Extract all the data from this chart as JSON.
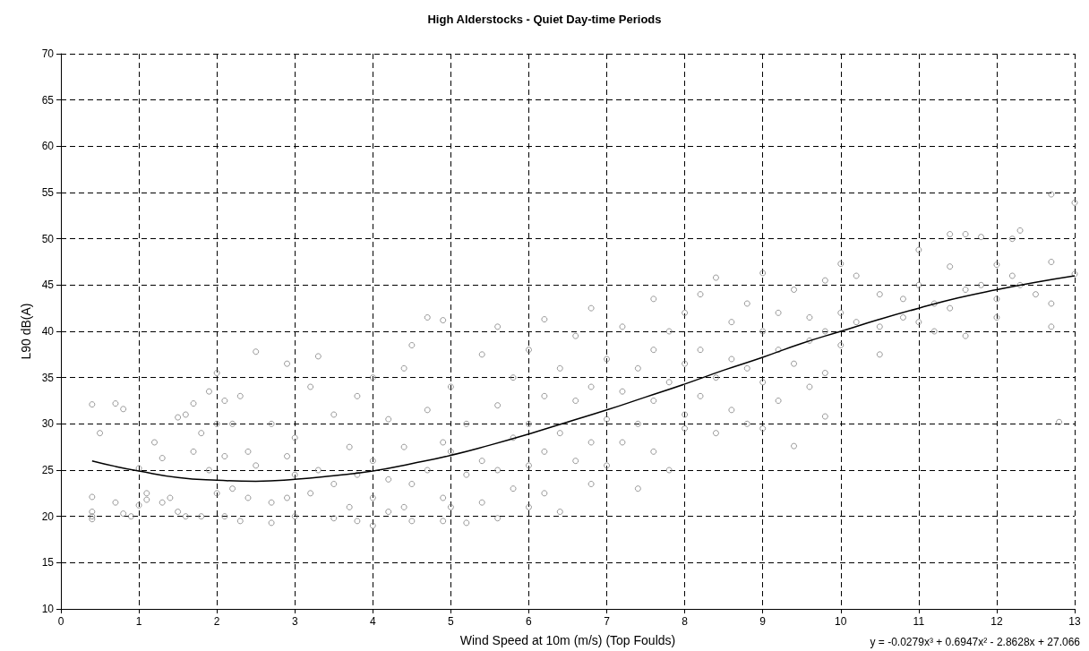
{
  "chart_data": {
    "type": "scatter",
    "title": "High Alderstocks - Quiet Day-time Periods",
    "xlabel": "Wind Speed at 10m (m/s) (Top Foulds)",
    "ylabel": "L90 dB(A)",
    "xlim": [
      0,
      13
    ],
    "xticks": [
      0,
      1,
      2,
      3,
      4,
      5,
      6,
      7,
      8,
      9,
      10,
      11,
      12,
      13
    ],
    "ylim": [
      10,
      70
    ],
    "yticks": [
      10,
      15,
      20,
      25,
      30,
      35,
      40,
      45,
      50,
      55,
      60,
      65,
      70
    ],
    "grid": true,
    "marker": "circle",
    "annotations": [
      "y = -0.0279x³ + 0.6947x² - 2.8628x + 27.066"
    ],
    "series": [
      {
        "color": "#808080",
        "x": [
          0.4,
          0.4,
          0.4,
          0.4,
          0.4,
          0.5,
          0.7,
          0.7,
          0.8,
          0.8,
          0.9,
          1.0,
          1.0,
          1.1,
          1.1,
          1.2,
          1.3,
          1.3,
          1.4,
          1.5,
          1.5,
          1.6,
          1.6,
          1.7,
          1.7,
          1.8,
          1.8,
          1.9,
          1.9,
          2.0,
          2.0,
          2.0,
          2.1,
          2.1,
          2.1,
          2.2,
          2.2,
          2.3,
          2.3,
          2.4,
          2.4,
          2.5,
          2.5,
          2.7,
          2.7,
          2.7,
          2.9,
          2.9,
          2.9,
          3.0,
          3.0,
          3.0,
          3.2,
          3.2,
          3.3,
          3.3,
          3.5,
          3.5,
          3.5,
          3.7,
          3.7,
          3.8,
          3.8,
          3.8,
          4.0,
          4.0,
          4.0,
          4.0,
          4.2,
          4.2,
          4.2,
          4.4,
          4.4,
          4.4,
          4.5,
          4.5,
          4.5,
          4.7,
          4.7,
          4.7,
          4.9,
          4.9,
          4.9,
          4.9,
          5.0,
          5.0,
          5.0,
          5.2,
          5.2,
          5.2,
          5.4,
          5.4,
          5.4,
          5.6,
          5.6,
          5.6,
          5.6,
          5.8,
          5.8,
          5.8,
          6.0,
          6.0,
          6.0,
          6.0,
          6.2,
          6.2,
          6.2,
          6.2,
          6.4,
          6.4,
          6.4,
          6.6,
          6.6,
          6.6,
          6.8,
          6.8,
          6.8,
          6.8,
          7.0,
          7.0,
          7.0,
          7.2,
          7.2,
          7.2,
          7.4,
          7.4,
          7.4,
          7.6,
          7.6,
          7.6,
          7.6,
          7.8,
          7.8,
          7.8,
          8.0,
          8.0,
          8.0,
          8.0,
          8.2,
          8.2,
          8.2,
          8.4,
          8.4,
          8.4,
          8.6,
          8.6,
          8.6,
          8.8,
          8.8,
          8.8,
          9.0,
          9.0,
          9.0,
          9.0,
          9.2,
          9.2,
          9.2,
          9.4,
          9.4,
          9.4,
          9.6,
          9.6,
          9.6,
          9.8,
          9.8,
          9.8,
          9.8,
          10.0,
          10.0,
          10.0,
          10.2,
          10.2,
          10.5,
          10.5,
          10.5,
          10.8,
          10.8,
          11.0,
          11.0,
          11.0,
          11.2,
          11.2,
          11.4,
          11.4,
          11.4,
          11.6,
          11.6,
          11.6,
          11.8,
          11.8,
          12.0,
          12.0,
          12.0,
          12.2,
          12.2,
          12.3,
          12.3,
          12.5,
          12.7,
          12.7,
          12.7,
          12.7,
          12.8,
          13.0,
          13.0
        ],
        "values": [
          32.1,
          22.1,
          20.5,
          20.0,
          19.7,
          29.0,
          32.2,
          21.5,
          31.6,
          20.3,
          20.0,
          21.2,
          25.2,
          22.5,
          21.8,
          28.0,
          26.3,
          21.5,
          22.0,
          30.7,
          20.5,
          31.0,
          20.0,
          32.2,
          27.0,
          29.0,
          20.0,
          33.5,
          25.0,
          35.5,
          30.0,
          22.5,
          32.5,
          20.0,
          26.5,
          30.0,
          23.0,
          33.0,
          19.5,
          27.0,
          22.0,
          37.8,
          25.5,
          30.0,
          21.5,
          19.3,
          36.5,
          26.5,
          22.0,
          28.5,
          24.5,
          20.0,
          34.0,
          22.5,
          37.3,
          25.0,
          31.0,
          23.5,
          19.8,
          27.5,
          21.0,
          33.0,
          24.5,
          19.5,
          35.0,
          26.0,
          22.0,
          19.0,
          30.5,
          24.0,
          20.5,
          36.0,
          27.5,
          21.0,
          38.5,
          23.5,
          19.5,
          41.5,
          31.5,
          25.0,
          41.2,
          28.0,
          22.0,
          19.5,
          34.0,
          27.0,
          21.0,
          30.0,
          24.5,
          19.3,
          37.5,
          26.0,
          21.5,
          40.5,
          32.0,
          25.0,
          19.8,
          35.0,
          28.5,
          23.0,
          38.0,
          30.0,
          25.5,
          21.0,
          41.3,
          33.0,
          27.0,
          22.5,
          36.0,
          29.0,
          20.5,
          39.5,
          32.5,
          26.0,
          42.5,
          34.0,
          28.0,
          23.5,
          37.0,
          30.5,
          25.5,
          40.5,
          33.5,
          28.0,
          36.0,
          30.0,
          23.0,
          43.5,
          38.0,
          32.5,
          27.0,
          40.0,
          34.5,
          25.0,
          42.0,
          36.5,
          31.0,
          29.5,
          44.0,
          38.0,
          33.0,
          45.8,
          35.0,
          29.0,
          41.0,
          37.0,
          31.5,
          43.0,
          36.0,
          30.0,
          46.3,
          40.0,
          34.5,
          29.5,
          42.0,
          38.0,
          32.5,
          44.5,
          36.5,
          27.6,
          41.5,
          39.0,
          34.0,
          45.5,
          40.0,
          35.5,
          30.8,
          47.3,
          42.0,
          38.5,
          46.0,
          41.0,
          44.0,
          40.5,
          37.5,
          43.5,
          41.5,
          48.8,
          45.0,
          41.0,
          43.0,
          40.0,
          50.5,
          47.0,
          42.5,
          50.5,
          44.5,
          39.5,
          50.2,
          45.0,
          47.2,
          43.5,
          41.5,
          50.0,
          46.0,
          50.9,
          45.0,
          44.0,
          54.8,
          47.5,
          43.0,
          40.5,
          30.2,
          53.9,
          46.2
        ]
      },
      {
        "type": "line",
        "color": "#000000",
        "marker": "none",
        "x": [
          0.4,
          0.7,
          1,
          1.5,
          2,
          2.5,
          3,
          3.5,
          4,
          4.5,
          5,
          5.5,
          6,
          6.5,
          7,
          7.5,
          8,
          8.5,
          9,
          9.5,
          10,
          10.5,
          11,
          11.5,
          12,
          12.5,
          13
        ],
        "values": [
          26.0,
          25.4,
          24.9,
          24.2,
          23.9,
          23.8,
          24.0,
          24.4,
          24.9,
          25.7,
          26.6,
          27.7,
          28.9,
          30.2,
          31.5,
          32.9,
          34.3,
          35.8,
          37.2,
          38.7,
          40.0,
          41.3,
          42.5,
          43.6,
          44.5,
          45.3,
          46.0
        ]
      }
    ]
  }
}
